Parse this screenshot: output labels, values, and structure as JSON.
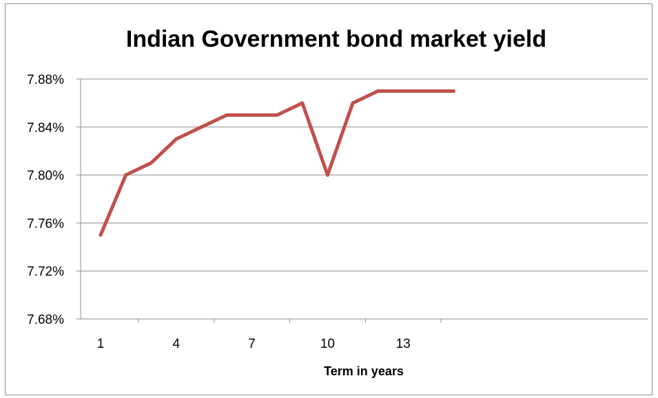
{
  "chart_data": {
    "type": "line",
    "title": "Indian Government bond market yield",
    "xlabel": "Term in years",
    "ylabel": "",
    "x": [
      1,
      2,
      3,
      4,
      5,
      6,
      7,
      8,
      9,
      10,
      11,
      12,
      13,
      14,
      15
    ],
    "x_tick_labels": [
      "1",
      "4",
      "7",
      "10",
      "13"
    ],
    "x_tick_label_values": [
      1,
      4,
      7,
      10,
      13
    ],
    "y_tick_labels": [
      "7.88%",
      "7.84%",
      "7.80%",
      "7.76%",
      "7.72%",
      "7.68%"
    ],
    "y_tick_values": [
      7.88,
      7.84,
      7.8,
      7.76,
      7.72,
      7.68
    ],
    "ylim": [
      7.68,
      7.88
    ],
    "grid": true,
    "legend": "none",
    "series": [
      {
        "values": [
          7.75,
          7.8,
          7.81,
          7.83,
          7.84,
          7.85,
          7.85,
          7.85,
          7.86,
          7.8,
          7.86,
          7.87,
          7.87,
          7.87,
          7.87
        ],
        "color": "#C0504D"
      }
    ],
    "colors": {
      "line": "#C0504D",
      "grid": "#8c8c8c",
      "axis": "#8c8c8c"
    }
  }
}
